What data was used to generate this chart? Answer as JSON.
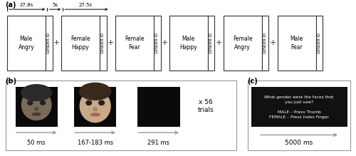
{
  "panel_a_label": "(a)",
  "panel_b_label": "(b)",
  "panel_c_label": "(c)",
  "timing_labels": [
    "27.8s",
    "5s",
    "27.5s"
  ],
  "blocks": [
    {
      "main": "Male\nAngry",
      "side": "GENDER ID"
    },
    {
      "main": "Female\nHappy",
      "side": "GENDER ID"
    },
    {
      "main": "Female\nFear",
      "side": "GENDER ID"
    },
    {
      "main": "Male\nHappy",
      "side": "GENDER ID"
    },
    {
      "main": "Female\nAngry",
      "side": "GENDER ID"
    },
    {
      "main": "Male\nFear",
      "side": "GENDER ID"
    }
  ],
  "text_box_lines": [
    "What gender were the faces that",
    "you just saw?",
    "",
    "MALE – Press Thumb",
    "FEMALE – Press Index Finger"
  ],
  "trial_times": [
    "50 ms",
    "167-183 ms",
    "291 ms"
  ],
  "gender_id_time": "5000 ms",
  "repeat_label": "x 56\ntrials"
}
